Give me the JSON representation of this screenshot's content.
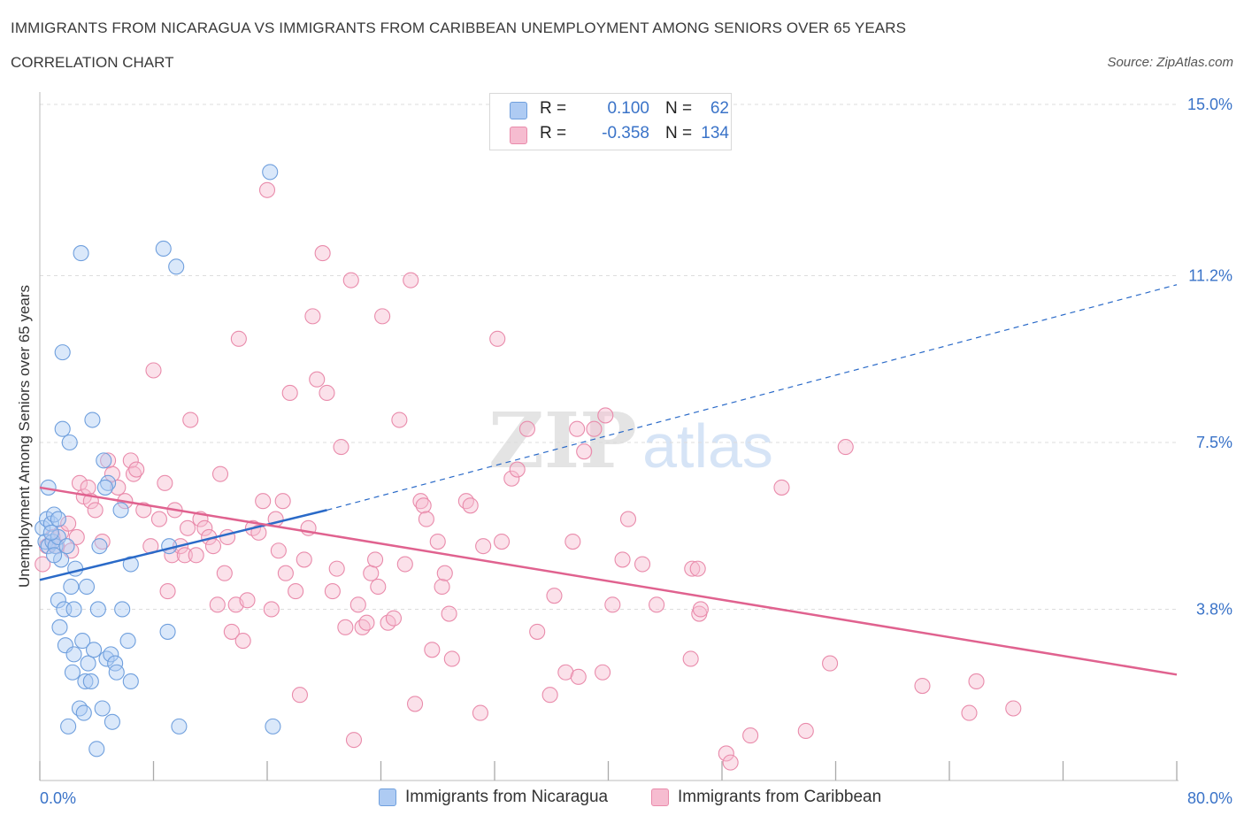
{
  "header": {
    "title": "IMMIGRANTS FROM NICARAGUA VS IMMIGRANTS FROM CARIBBEAN UNEMPLOYMENT AMONG SENIORS OVER 65 YEARS",
    "subtitle": "CORRELATION CHART",
    "source": "Source: ZipAtlas.com"
  },
  "watermark": {
    "zip": "ZIP",
    "atlas": "atlas"
  },
  "legend": {
    "rows": [
      {
        "r_label": "R =",
        "r_value": "0.100",
        "n_label": "N =",
        "n_value": "62",
        "color": "#aecbf3"
      },
      {
        "r_label": "R =",
        "r_value": "-0.358",
        "n_label": "N =",
        "n_value": "134",
        "color": "#f6bcd0"
      }
    ]
  },
  "bottom_legend": [
    {
      "label": "Immigrants from Nicaragua",
      "color": "#aecbf3"
    },
    {
      "label": "Immigrants from Caribbean",
      "color": "#f6bcd0"
    }
  ],
  "colors": {
    "nicaragua_fill": "#aecbf3",
    "nicaragua_stroke": "#6f9fdd",
    "nicaragua_line": "#2a6ac8",
    "caribbean_fill": "#f6bcd0",
    "caribbean_stroke": "#e98bab",
    "caribbean_line": "#e0628f",
    "tick_label": "#3a73c8",
    "grid": "#dddddd"
  },
  "chart_data": {
    "type": "scatter",
    "ylabel": "Unemployment Among Seniors over 65 years",
    "xlim": [
      0,
      80
    ],
    "ylim": [
      0,
      15
    ],
    "x_tick_labels": [
      {
        "value": 0,
        "label": "0.0%"
      },
      {
        "value": 80,
        "label": "80.0%"
      }
    ],
    "y_tick_labels": [
      {
        "value": 3.8,
        "label": "3.8%"
      },
      {
        "value": 7.5,
        "label": "7.5%"
      },
      {
        "value": 11.2,
        "label": "11.2%"
      },
      {
        "value": 15.0,
        "label": "15.0%"
      }
    ],
    "grid": true,
    "legend_position": "top-center",
    "series": [
      {
        "name": "Immigrants from Nicaragua",
        "color": "#aecbf3",
        "trend": {
          "x0": 0,
          "y0": 4.45,
          "x1": 20.2,
          "y1": 6.0,
          "extended_x1": 80,
          "extended_y1": 11.0
        },
        "points": [
          [
            0.2,
            5.6
          ],
          [
            0.4,
            5.3
          ],
          [
            0.5,
            5.8
          ],
          [
            0.6,
            6.5
          ],
          [
            0.6,
            5.2
          ],
          [
            0.8,
            5.7
          ],
          [
            0.9,
            5.3
          ],
          [
            1.0,
            5.9
          ],
          [
            1.1,
            5.2
          ],
          [
            1.3,
            5.4
          ],
          [
            1.3,
            4.0
          ],
          [
            1.4,
            3.4
          ],
          [
            1.5,
            4.9
          ],
          [
            1.6,
            7.8
          ],
          [
            1.6,
            9.5
          ],
          [
            1.7,
            3.8
          ],
          [
            1.8,
            3.0
          ],
          [
            1.9,
            5.2
          ],
          [
            2.0,
            1.2
          ],
          [
            2.1,
            7.5
          ],
          [
            2.3,
            2.4
          ],
          [
            2.4,
            3.8
          ],
          [
            2.4,
            2.8
          ],
          [
            2.5,
            4.7
          ],
          [
            2.8,
            1.6
          ],
          [
            3.0,
            3.1
          ],
          [
            3.1,
            1.5
          ],
          [
            3.2,
            2.2
          ],
          [
            3.3,
            4.3
          ],
          [
            3.4,
            2.6
          ],
          [
            3.6,
            2.2
          ],
          [
            3.8,
            2.9
          ],
          [
            4.0,
            0.7
          ],
          [
            4.1,
            3.8
          ],
          [
            4.2,
            5.2
          ],
          [
            4.4,
            1.6
          ],
          [
            4.7,
            2.7
          ],
          [
            4.8,
            6.6
          ],
          [
            5.0,
            2.8
          ],
          [
            5.1,
            1.3
          ],
          [
            5.3,
            2.6
          ],
          [
            5.4,
            2.4
          ],
          [
            5.7,
            6.0
          ],
          [
            5.8,
            3.8
          ],
          [
            6.2,
            3.1
          ],
          [
            6.4,
            2.2
          ],
          [
            6.4,
            4.8
          ],
          [
            8.7,
            11.8
          ],
          [
            9.0,
            3.3
          ],
          [
            9.1,
            5.2
          ],
          [
            9.6,
            11.4
          ],
          [
            9.8,
            1.2
          ],
          [
            16.2,
            13.5
          ],
          [
            16.4,
            1.2
          ],
          [
            2.9,
            11.7
          ],
          [
            3.7,
            8.0
          ],
          [
            4.5,
            7.1
          ],
          [
            1.0,
            5.0
          ],
          [
            2.2,
            4.3
          ],
          [
            0.8,
            5.5
          ],
          [
            4.6,
            6.5
          ],
          [
            1.3,
            5.8
          ]
        ]
      },
      {
        "name": "Immigrants from Caribbean",
        "color": "#f6bcd0",
        "trend": {
          "x0": 0,
          "y0": 6.5,
          "x1": 80,
          "y1": 2.35
        },
        "points": [
          [
            0.2,
            4.8
          ],
          [
            0.5,
            5.2
          ],
          [
            0.9,
            5.4
          ],
          [
            1.2,
            5.2
          ],
          [
            1.5,
            5.5
          ],
          [
            2.0,
            5.7
          ],
          [
            2.2,
            5.1
          ],
          [
            2.6,
            5.4
          ],
          [
            2.8,
            6.6
          ],
          [
            3.1,
            6.3
          ],
          [
            3.4,
            6.5
          ],
          [
            3.6,
            6.2
          ],
          [
            3.9,
            6.0
          ],
          [
            4.4,
            5.3
          ],
          [
            4.8,
            7.1
          ],
          [
            5.1,
            6.8
          ],
          [
            5.5,
            6.5
          ],
          [
            6.0,
            6.2
          ],
          [
            6.4,
            7.1
          ],
          [
            6.6,
            6.8
          ],
          [
            6.8,
            6.9
          ],
          [
            7.3,
            6.0
          ],
          [
            7.8,
            5.2
          ],
          [
            8.0,
            9.1
          ],
          [
            8.4,
            5.8
          ],
          [
            8.8,
            6.6
          ],
          [
            9.0,
            4.2
          ],
          [
            9.3,
            5.0
          ],
          [
            9.5,
            6.0
          ],
          [
            9.9,
            5.2
          ],
          [
            10.2,
            5.0
          ],
          [
            10.4,
            5.6
          ],
          [
            10.6,
            8.0
          ],
          [
            11.0,
            5.0
          ],
          [
            11.3,
            5.8
          ],
          [
            11.6,
            5.6
          ],
          [
            11.9,
            5.4
          ],
          [
            12.2,
            5.2
          ],
          [
            12.5,
            3.9
          ],
          [
            12.7,
            6.8
          ],
          [
            13.0,
            4.6
          ],
          [
            13.2,
            5.4
          ],
          [
            13.5,
            3.3
          ],
          [
            13.8,
            3.9
          ],
          [
            14.0,
            9.8
          ],
          [
            14.3,
            3.1
          ],
          [
            14.6,
            4.0
          ],
          [
            15.0,
            5.6
          ],
          [
            15.4,
            5.5
          ],
          [
            15.7,
            6.2
          ],
          [
            16.0,
            13.1
          ],
          [
            16.3,
            3.8
          ],
          [
            16.6,
            5.8
          ],
          [
            16.8,
            5.1
          ],
          [
            17.1,
            6.2
          ],
          [
            17.3,
            4.6
          ],
          [
            17.6,
            8.6
          ],
          [
            18.0,
            4.2
          ],
          [
            18.3,
            1.9
          ],
          [
            18.6,
            4.9
          ],
          [
            18.9,
            5.6
          ],
          [
            19.2,
            10.3
          ],
          [
            19.5,
            8.9
          ],
          [
            19.9,
            11.7
          ],
          [
            20.2,
            8.6
          ],
          [
            20.6,
            4.2
          ],
          [
            20.9,
            4.7
          ],
          [
            21.2,
            7.4
          ],
          [
            21.5,
            3.4
          ],
          [
            21.9,
            11.1
          ],
          [
            22.1,
            0.9
          ],
          [
            22.4,
            3.9
          ],
          [
            22.7,
            3.4
          ],
          [
            23.0,
            3.5
          ],
          [
            23.3,
            4.6
          ],
          [
            23.6,
            4.9
          ],
          [
            23.8,
            4.3
          ],
          [
            24.1,
            10.3
          ],
          [
            24.5,
            3.5
          ],
          [
            24.9,
            3.6
          ],
          [
            25.3,
            8.0
          ],
          [
            25.7,
            4.8
          ],
          [
            26.1,
            11.1
          ],
          [
            26.4,
            1.7
          ],
          [
            26.8,
            6.2
          ],
          [
            27.0,
            6.1
          ],
          [
            27.2,
            5.8
          ],
          [
            27.6,
            2.9
          ],
          [
            28.0,
            5.3
          ],
          [
            28.3,
            4.3
          ],
          [
            28.5,
            4.6
          ],
          [
            28.8,
            3.7
          ],
          [
            29.0,
            2.7
          ],
          [
            30.0,
            6.2
          ],
          [
            30.3,
            6.1
          ],
          [
            31.0,
            1.5
          ],
          [
            31.2,
            5.2
          ],
          [
            32.2,
            9.8
          ],
          [
            32.5,
            5.3
          ],
          [
            33.2,
            6.7
          ],
          [
            33.6,
            6.9
          ],
          [
            34.3,
            7.8
          ],
          [
            35.0,
            3.3
          ],
          [
            35.9,
            1.9
          ],
          [
            36.2,
            4.1
          ],
          [
            37.0,
            2.4
          ],
          [
            37.5,
            5.3
          ],
          [
            37.8,
            7.8
          ],
          [
            37.9,
            2.3
          ],
          [
            38.3,
            7.3
          ],
          [
            39.0,
            7.8
          ],
          [
            39.6,
            2.4
          ],
          [
            39.8,
            8.1
          ],
          [
            40.3,
            3.9
          ],
          [
            41.0,
            4.9
          ],
          [
            41.4,
            5.8
          ],
          [
            42.4,
            4.8
          ],
          [
            43.4,
            3.9
          ],
          [
            45.9,
            4.7
          ],
          [
            45.8,
            2.7
          ],
          [
            46.3,
            4.7
          ],
          [
            46.4,
            3.7
          ],
          [
            48.3,
            0.6
          ],
          [
            48.6,
            0.4
          ],
          [
            50.0,
            1.0
          ],
          [
            52.2,
            6.5
          ],
          [
            53.9,
            1.1
          ],
          [
            55.6,
            2.6
          ],
          [
            56.7,
            7.4
          ],
          [
            62.1,
            2.1
          ],
          [
            65.4,
            1.5
          ],
          [
            65.9,
            2.2
          ],
          [
            68.5,
            1.6
          ],
          [
            46.5,
            3.8
          ]
        ]
      }
    ]
  }
}
